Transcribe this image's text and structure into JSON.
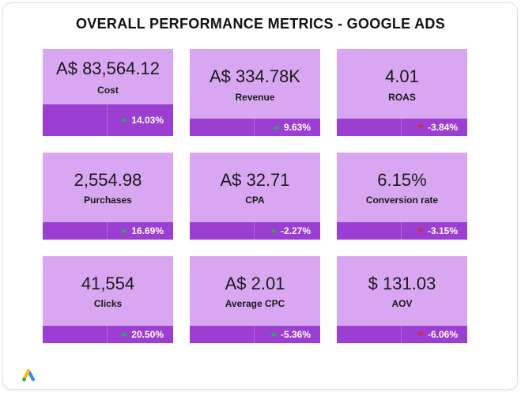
{
  "title": "OVERALL PERFORMANCE METRICS - GOOGLE ADS",
  "cards": [
    {
      "value": "A$ 83,564.12",
      "label": "Cost",
      "change": "14.03%",
      "direction": "up"
    },
    {
      "value": "A$ 334.78K",
      "label": "Revenue",
      "change": "9.63%",
      "direction": "up"
    },
    {
      "value": "4.01",
      "label": "ROAS",
      "change": "-3.84%",
      "direction": "down"
    },
    {
      "value": "2,554.98",
      "label": "Purchases",
      "change": "16.69%",
      "direction": "up"
    },
    {
      "value": "A$ 32.71",
      "label": "CPA",
      "change": "-2.27%",
      "direction": "up"
    },
    {
      "value": "6.15%",
      "label": "Conversion rate",
      "change": "-3.15%",
      "direction": "down"
    },
    {
      "value": "41,554",
      "label": "Clicks",
      "change": "20.50%",
      "direction": "up"
    },
    {
      "value": "A$ 2.01",
      "label": "Average CPC",
      "change": "-5.36%",
      "direction": "up"
    },
    {
      "value": "$ 131.03",
      "label": "AOV",
      "change": "-6.06%",
      "direction": "down"
    }
  ],
  "colors": {
    "card_bg": "#d9a6f2",
    "card_bar": "#9b3ed1",
    "positive_arrow": "#22b14c",
    "negative_arrow": "#e0281e"
  },
  "logo_icon": "google-ads-icon"
}
